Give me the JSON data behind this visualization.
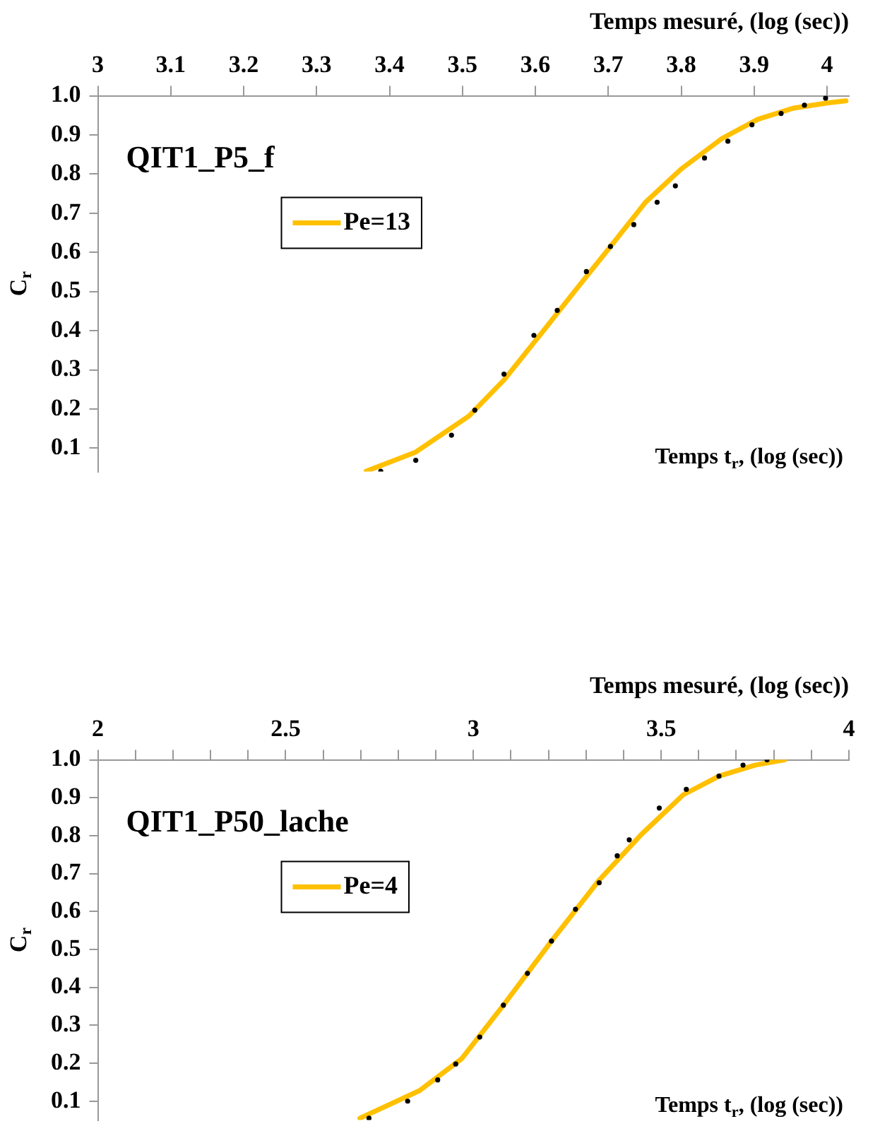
{
  "chart_data": [
    {
      "type": "line",
      "title": "QIT1_P5_f",
      "xlabel": "Temps mesuré, (log (sec))",
      "ylabel": "C$_{r}$",
      "annotations": [
        "Temps t$_{r}$, (log (sec))"
      ],
      "legend": "top left",
      "grid": false,
      "xlim": [
        3,
        4.03
      ],
      "xticks": [
        3,
        3.1,
        3.2,
        3.3,
        3.4,
        3.5,
        3.6,
        3.7,
        3.8,
        3.9,
        4
      ],
      "ylim": [
        0.04,
        1
      ],
      "yticks": [
        0.1,
        0.2,
        0.3,
        0.4,
        0.5,
        0.6,
        0.7,
        0.8,
        0.9,
        {
          "value": 1,
          "label": "1.0"
        }
      ],
      "series": [
        {
          "type": "scatter",
          "marker": "circle",
          "color": "#000000",
          "x": [
            3.388,
            3.436,
            3.485,
            3.517,
            3.557,
            3.598,
            3.63,
            3.67,
            3.703,
            3.735,
            3.767,
            3.792,
            3.832,
            3.864,
            3.897,
            3.937,
            3.969,
            3.998
          ],
          "values": [
            0.041,
            0.069,
            0.133,
            0.197,
            0.289,
            0.388,
            0.452,
            0.551,
            0.615,
            0.671,
            0.728,
            0.77,
            0.841,
            0.884,
            0.926,
            0.955,
            0.976,
            0.994
          ]
        },
        {
          "type": "line",
          "name": "Pe=13",
          "color": "#ffc000",
          "x": [
            3.368,
            3.436,
            3.509,
            3.557,
            3.606,
            3.654,
            3.703,
            3.751,
            3.8,
            3.856,
            3.905,
            3.953,
            4.002,
            4.026
          ],
          "values": [
            0.041,
            0.09,
            0.182,
            0.274,
            0.388,
            0.501,
            0.615,
            0.728,
            0.813,
            0.891,
            0.94,
            0.968,
            0.982,
            0.987
          ]
        }
      ]
    },
    {
      "type": "line",
      "title": "QIT1_P50_lache",
      "xlabel": "Temps mesuré, (log (sec))",
      "ylabel": "C$_{r}$",
      "annotations": [
        "Temps t$_{r}$, (log (sec))"
      ],
      "legend": "top left",
      "grid": false,
      "xlim": [
        2,
        4
      ],
      "xticks": [
        2,
        {
          "value": 2.1,
          "label": null
        },
        {
          "value": 2.2,
          "label": null
        },
        {
          "value": 2.3,
          "label": null
        },
        {
          "value": 2.4,
          "label": null
        },
        2.5,
        {
          "value": 2.6,
          "label": null
        },
        {
          "value": 2.7,
          "label": null
        },
        {
          "value": 2.8,
          "label": null
        },
        {
          "value": 2.9,
          "label": null
        },
        3,
        {
          "value": 3.1,
          "label": null
        },
        {
          "value": 3.2,
          "label": null
        },
        {
          "value": 3.3,
          "label": null
        },
        {
          "value": 3.4,
          "label": null
        },
        3.5,
        {
          "value": 3.6,
          "label": null
        },
        {
          "value": 3.7,
          "label": null
        },
        {
          "value": 3.8,
          "label": null
        },
        {
          "value": 3.9,
          "label": null
        },
        4
      ],
      "ylim": [
        0.05,
        1
      ],
      "yticks": [
        0.1,
        0.2,
        0.3,
        0.4,
        0.5,
        0.6,
        0.7,
        0.8,
        0.9,
        {
          "value": 1,
          "label": "1.0"
        }
      ],
      "series": [
        {
          "type": "scatter",
          "marker": "circle",
          "color": "#000000",
          "x": [
            2.722,
            2.825,
            2.905,
            2.953,
            3.017,
            3.08,
            3.144,
            3.208,
            3.272,
            3.335,
            3.383,
            3.415,
            3.495,
            3.567,
            3.654,
            3.718,
            3.782
          ],
          "values": [
            0.055,
            0.1,
            0.156,
            0.198,
            0.269,
            0.353,
            0.437,
            0.522,
            0.606,
            0.676,
            0.747,
            0.789,
            0.873,
            0.922,
            0.957,
            0.986,
            1.0
          ]
        },
        {
          "type": "line",
          "name": "Pe=4",
          "color": "#ffc000",
          "x": [
            2.698,
            2.857,
            2.969,
            3.08,
            3.208,
            3.335,
            3.447,
            3.559,
            3.654,
            3.75,
            3.829
          ],
          "values": [
            0.055,
            0.128,
            0.212,
            0.353,
            0.522,
            0.683,
            0.803,
            0.908,
            0.957,
            0.986,
            1.0
          ]
        }
      ]
    }
  ]
}
